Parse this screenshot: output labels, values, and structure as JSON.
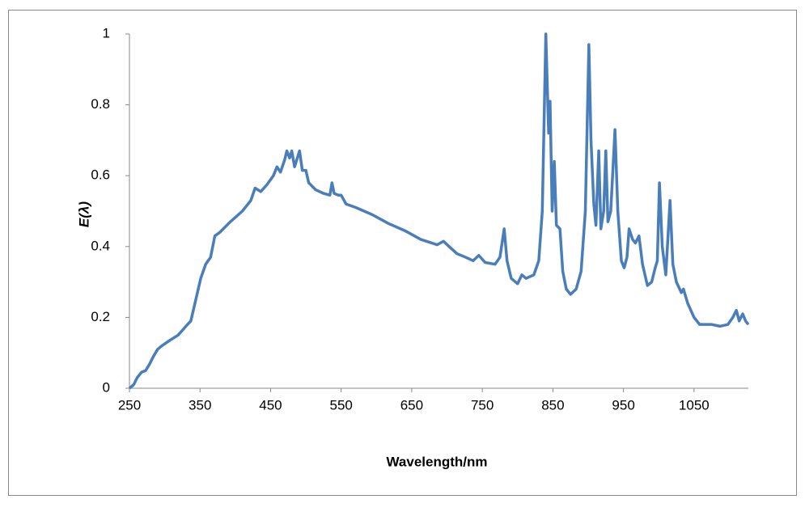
{
  "chart_data": {
    "type": "line",
    "xlabel": "Wavelength/nm",
    "ylabel": "E(λ)",
    "xlim": [
      250,
      1127
    ],
    "xticks": [
      250,
      350,
      450,
      550,
      650,
      750,
      850,
      950,
      1050
    ],
    "ylim": [
      0,
      1
    ],
    "yticks": [
      0,
      0.2,
      0.4,
      0.6,
      0.8,
      1
    ],
    "grid": false,
    "x": [
      250,
      256,
      261,
      267,
      273,
      279,
      284,
      290,
      296,
      307,
      319,
      330,
      337,
      344,
      351,
      358,
      365,
      371,
      378,
      393,
      410,
      422,
      428,
      436,
      445,
      454,
      459,
      464,
      470,
      473,
      477,
      480,
      484,
      491,
      495,
      500,
      504,
      514,
      525,
      534,
      537,
      540,
      546,
      550,
      557,
      571,
      594,
      617,
      640,
      663,
      686,
      695,
      703,
      714,
      726,
      737,
      745,
      754,
      768,
      775,
      781,
      785,
      791,
      800,
      806,
      812,
      823,
      830,
      835,
      840,
      844,
      846,
      849,
      852,
      855,
      860,
      864,
      869,
      875,
      883,
      890,
      896,
      901,
      904,
      908,
      911,
      915,
      918,
      922,
      925,
      928,
      932,
      938,
      942,
      947,
      951,
      955,
      958,
      963,
      967,
      972,
      977,
      984,
      990,
      995,
      998,
      1001,
      1005,
      1010,
      1016,
      1020,
      1025,
      1032,
      1035,
      1041,
      1050,
      1058,
      1075,
      1087,
      1098,
      1105,
      1110,
      1114,
      1119,
      1123,
      1127
    ],
    "series": [
      {
        "name": "E(λ)",
        "color": "#4a7ebb",
        "values": [
          0,
          0.01,
          0.03,
          0.045,
          0.05,
          0.07,
          0.09,
          0.11,
          0.12,
          0.135,
          0.15,
          0.175,
          0.19,
          0.25,
          0.31,
          0.35,
          0.37,
          0.43,
          0.44,
          0.47,
          0.5,
          0.53,
          0.565,
          0.555,
          0.575,
          0.6,
          0.625,
          0.61,
          0.645,
          0.67,
          0.65,
          0.67,
          0.625,
          0.67,
          0.615,
          0.615,
          0.58,
          0.56,
          0.55,
          0.545,
          0.58,
          0.55,
          0.545,
          0.545,
          0.52,
          0.51,
          0.49,
          0.465,
          0.445,
          0.42,
          0.405,
          0.415,
          0.4,
          0.38,
          0.37,
          0.36,
          0.375,
          0.355,
          0.35,
          0.37,
          0.45,
          0.36,
          0.31,
          0.295,
          0.32,
          0.31,
          0.32,
          0.36,
          0.5,
          1,
          0.72,
          0.81,
          0.5,
          0.64,
          0.46,
          0.45,
          0.33,
          0.28,
          0.265,
          0.28,
          0.33,
          0.5,
          0.97,
          0.7,
          0.52,
          0.46,
          0.67,
          0.45,
          0.5,
          0.67,
          0.47,
          0.5,
          0.73,
          0.5,
          0.36,
          0.34,
          0.37,
          0.45,
          0.42,
          0.41,
          0.43,
          0.35,
          0.29,
          0.3,
          0.34,
          0.36,
          0.58,
          0.4,
          0.32,
          0.53,
          0.35,
          0.3,
          0.27,
          0.28,
          0.24,
          0.2,
          0.18,
          0.18,
          0.175,
          0.18,
          0.2,
          0.22,
          0.19,
          0.21,
          0.19,
          0.18
        ]
      }
    ]
  }
}
